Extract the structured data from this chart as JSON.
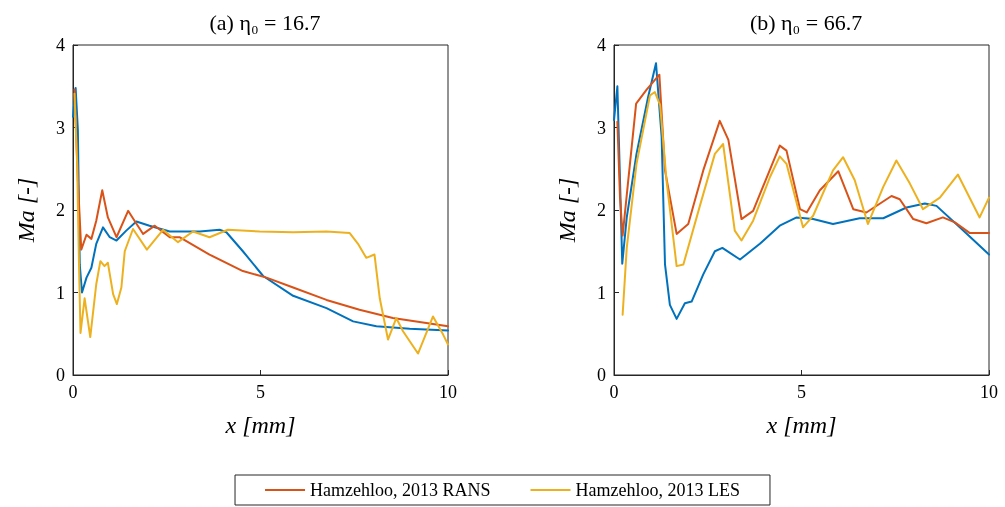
{
  "chart_data": [
    {
      "type": "line",
      "title": "(a) η₀ = 16.7",
      "xlabel": "x [mm]",
      "ylabel": "Ma [-]",
      "xlim": [
        0,
        10
      ],
      "xticks": [
        0,
        5,
        10
      ],
      "ylim": [
        0,
        4
      ],
      "yticks": [
        0,
        1,
        2,
        3,
        4
      ],
      "grid": false,
      "legend": "bottom",
      "marker": "none",
      "line_style": "solid",
      "series": [
        {
          "color": "#0072bd",
          "x": [
            0,
            0.07,
            0.13,
            0.18,
            0.24,
            0.36,
            0.49,
            0.62,
            0.8,
            0.98,
            1.16,
            1.42,
            1.69,
            2.04,
            2.58,
            3.38,
            3.91,
            4.09,
            4.53,
            5.07,
            5.87,
            6.76,
            7.47,
            8.09,
            8.98,
            10
          ],
          "values": [
            3.13,
            3.48,
            2.97,
            1.34,
            1.0,
            1.18,
            1.3,
            1.59,
            1.79,
            1.67,
            1.63,
            1.75,
            1.86,
            1.81,
            1.74,
            1.74,
            1.76,
            1.73,
            1.5,
            1.2,
            0.96,
            0.81,
            0.65,
            0.59,
            0.56,
            0.54
          ]
        },
        {
          "name": "Hamzehloo, 2013 RANS",
          "color": "#d95319",
          "x": [
            0.04,
            0.13,
            0.22,
            0.36,
            0.49,
            0.62,
            0.78,
            0.93,
            1.16,
            1.47,
            1.64,
            1.87,
            2.18,
            2.58,
            2.84,
            3.64,
            4.53,
            5.16,
            5.87,
            6.76,
            7.64,
            8.53,
            10
          ],
          "values": [
            3.46,
            2.36,
            1.52,
            1.7,
            1.65,
            1.87,
            2.24,
            1.91,
            1.67,
            1.99,
            1.87,
            1.71,
            1.81,
            1.67,
            1.67,
            1.46,
            1.26,
            1.18,
            1.06,
            0.91,
            0.79,
            0.69,
            0.59
          ]
        },
        {
          "name": "Hamzehloo, 2013 LES",
          "color": "#edb120",
          "x": [
            0.04,
            0.11,
            0.16,
            0.2,
            0.31,
            0.46,
            0.62,
            0.73,
            0.84,
            0.93,
            1.07,
            1.17,
            1.29,
            1.38,
            1.6,
            1.97,
            2.4,
            2.8,
            3.2,
            3.64,
            4.13,
            4.98,
            5.87,
            6.76,
            7.38,
            7.6,
            7.82,
            8.04,
            8.18,
            8.4,
            8.62,
            8.8,
            9.2,
            9.6,
            9.87,
            10
          ],
          "values": [
            3.41,
            2.56,
            1.34,
            0.51,
            0.93,
            0.46,
            1.1,
            1.38,
            1.32,
            1.36,
            0.98,
            0.86,
            1.06,
            1.5,
            1.77,
            1.52,
            1.76,
            1.61,
            1.74,
            1.67,
            1.76,
            1.74,
            1.73,
            1.74,
            1.72,
            1.59,
            1.42,
            1.46,
            0.93,
            0.43,
            0.69,
            0.53,
            0.26,
            0.71,
            0.49,
            0.37
          ]
        }
      ]
    },
    {
      "type": "line",
      "title": "(b) η₀ = 66.7",
      "xlabel": "x [mm]",
      "ylabel": "Ma [-]",
      "xlim": [
        0,
        10
      ],
      "xticks": [
        0,
        5,
        10
      ],
      "ylim": [
        0,
        4
      ],
      "yticks": [
        0,
        1,
        2,
        3,
        4
      ],
      "grid": false,
      "marker": "none",
      "line_style": "solid",
      "series": [
        {
          "color": "#0072bd",
          "x": [
            0,
            0.09,
            0.16,
            0.22,
            0.34,
            0.6,
            0.91,
            1.12,
            1.27,
            1.36,
            1.49,
            1.67,
            1.89,
            2.07,
            2.38,
            2.69,
            2.89,
            3.36,
            3.89,
            4.42,
            4.87,
            5.31,
            5.84,
            6.55,
            7.18,
            7.8,
            8.29,
            8.6,
            9.22,
            10
          ],
          "values": [
            3.09,
            3.5,
            2.36,
            1.35,
            1.91,
            2.68,
            3.37,
            3.78,
            2.89,
            1.34,
            0.85,
            0.68,
            0.87,
            0.89,
            1.22,
            1.5,
            1.54,
            1.4,
            1.59,
            1.81,
            1.91,
            1.89,
            1.83,
            1.9,
            1.9,
            2.03,
            2.08,
            2.05,
            1.79,
            1.46
          ]
        },
        {
          "color": "#d95319",
          "x": [
            0.09,
            0.16,
            0.23,
            0.38,
            0.59,
            0.87,
            1.21,
            1.36,
            1.67,
            1.98,
            2.38,
            2.82,
            3.05,
            3.4,
            3.71,
            4.42,
            4.6,
            4.96,
            5.14,
            5.49,
            5.98,
            6.38,
            6.73,
            7.4,
            7.62,
            7.98,
            8.33,
            8.77,
            9.09,
            9.49,
            10
          ],
          "values": [
            3.07,
            2.15,
            1.69,
            2.36,
            3.29,
            3.46,
            3.64,
            2.48,
            1.71,
            1.83,
            2.48,
            3.08,
            2.85,
            1.89,
            1.99,
            2.78,
            2.72,
            2.01,
            1.97,
            2.24,
            2.47,
            2.01,
            1.97,
            2.17,
            2.13,
            1.89,
            1.84,
            1.91,
            1.85,
            1.72,
            1.72
          ]
        },
        {
          "color": "#edb120",
          "x": [
            0.23,
            0.34,
            0.6,
            0.96,
            1.09,
            1.23,
            1.4,
            1.67,
            1.85,
            2.29,
            2.69,
            2.91,
            3.22,
            3.4,
            3.71,
            4.16,
            4.42,
            4.6,
            5.04,
            5.31,
            5.84,
            6.11,
            6.42,
            6.77,
            7.18,
            7.53,
            7.89,
            8.24,
            8.69,
            9.17,
            9.75,
            10
          ],
          "values": [
            0.73,
            1.54,
            2.56,
            3.39,
            3.43,
            3.27,
            2.36,
            1.32,
            1.34,
            2.05,
            2.68,
            2.8,
            1.75,
            1.63,
            1.87,
            2.4,
            2.65,
            2.56,
            1.79,
            1.93,
            2.48,
            2.64,
            2.36,
            1.83,
            2.28,
            2.6,
            2.32,
            2.01,
            2.15,
            2.43,
            1.91,
            2.15
          ]
        }
      ]
    }
  ]
}
